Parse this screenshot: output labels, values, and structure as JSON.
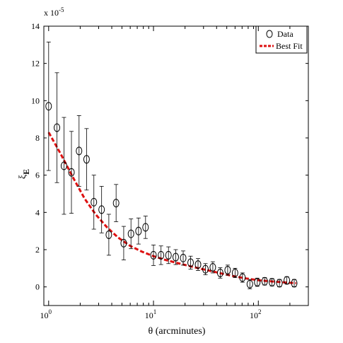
{
  "chart_data": {
    "type": "scatter",
    "xlabel": "θ (arcminutes)",
    "ylabel": "ξ",
    "ylabel_sub": "E",
    "x_scale": "log",
    "xlim": [
      0.9,
      300
    ],
    "ylim": [
      -1,
      14
    ],
    "y_multiplier": "x 10",
    "y_multiplier_exp": "-5",
    "y_ticks": [
      "0",
      "2",
      "4",
      "6",
      "8",
      "10",
      "12",
      "14"
    ],
    "x_ticks": [
      {
        "base": "10",
        "exp": "0"
      },
      {
        "base": "10",
        "exp": "1"
      },
      {
        "base": "10",
        "exp": "2"
      }
    ],
    "grid": false,
    "legend_position": "top-right",
    "series": [
      {
        "name": "Data",
        "marker": "open-circle",
        "color": "#000000",
        "x": [
          1.0,
          1.2,
          1.4,
          1.65,
          1.95,
          2.3,
          2.7,
          3.2,
          3.75,
          4.4,
          5.2,
          6.1,
          7.2,
          8.4,
          10.0,
          11.8,
          13.9,
          16.3,
          19.2,
          22.6,
          26.6,
          31.3,
          36.8,
          43.3,
          51.0,
          60.0,
          70.6,
          83.0,
          97.7,
          115,
          135,
          159,
          187,
          220
        ],
        "y": [
          9.7,
          8.55,
          6.5,
          6.15,
          7.3,
          6.85,
          4.55,
          4.15,
          2.8,
          4.5,
          2.35,
          2.85,
          3.0,
          3.2,
          1.7,
          1.7,
          1.7,
          1.6,
          1.55,
          1.3,
          1.2,
          0.95,
          1.05,
          0.75,
          0.9,
          0.75,
          0.5,
          0.15,
          0.25,
          0.3,
          0.25,
          0.2,
          0.35,
          0.2
        ],
        "err": [
          3.45,
          2.95,
          2.6,
          2.2,
          1.9,
          1.65,
          1.45,
          1.25,
          1.1,
          1.0,
          0.9,
          0.8,
          0.7,
          0.6,
          0.55,
          0.5,
          0.45,
          0.4,
          0.38,
          0.35,
          0.32,
          0.3,
          0.3,
          0.28,
          0.27,
          0.25,
          0.25,
          0.25,
          0.22,
          0.2,
          0.2,
          0.2,
          0.2,
          0.2
        ]
      },
      {
        "name": "Best Fit",
        "style": "dashed",
        "color": "#dd1111",
        "x": [
          1.0,
          1.3,
          1.7,
          2.2,
          2.8,
          3.6,
          4.6,
          6.0,
          7.7,
          10,
          13,
          17,
          22,
          28,
          36,
          46,
          60,
          77,
          100,
          130,
          170,
          230
        ],
        "y": [
          8.3,
          7.15,
          5.9,
          4.75,
          3.9,
          3.2,
          2.65,
          2.2,
          1.9,
          1.65,
          1.45,
          1.28,
          1.12,
          0.98,
          0.84,
          0.7,
          0.56,
          0.45,
          0.36,
          0.3,
          0.25,
          0.2
        ]
      }
    ]
  }
}
